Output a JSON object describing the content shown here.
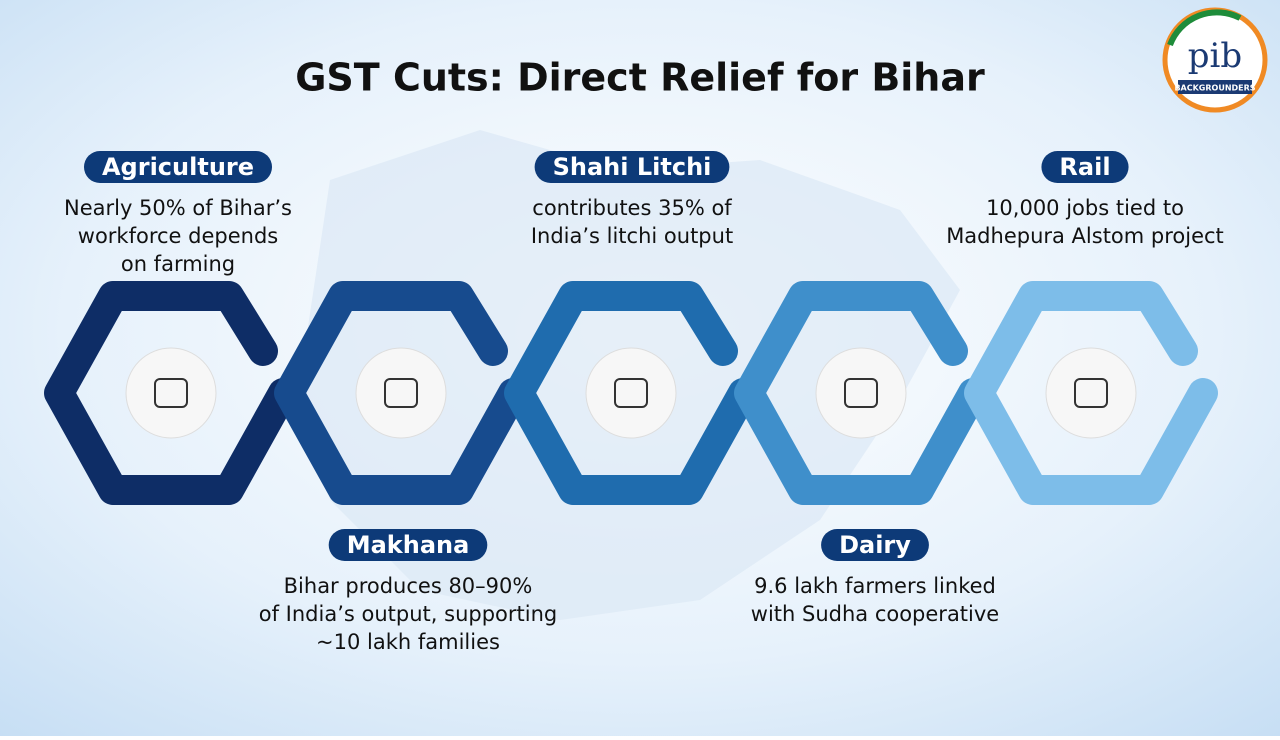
{
  "title": "GST Cuts: Direct Relief for Bihar",
  "logo": {
    "mark": "pib",
    "caption": "BACKGROUNDERS"
  },
  "items": [
    {
      "label": "Agriculture",
      "lines": [
        "Nearly 50% of Bihar’s",
        "workforce depends",
        "on farming"
      ]
    },
    {
      "label": "Makhana",
      "lines": [
        "Bihar produces 80–90%",
        "of India’s output, supporting",
        "~10 lakh families"
      ]
    },
    {
      "label": "Shahi Litchi",
      "lines": [
        "contributes 35% of",
        "India’s litchi output"
      ]
    },
    {
      "label": "Dairy",
      "lines": [
        "9.6 lakh farmers linked",
        "with Sudha cooperative"
      ]
    },
    {
      "label": "Rail",
      "lines": [
        "10,000 jobs tied to",
        "Madhepura Alstom project"
      ]
    }
  ]
}
